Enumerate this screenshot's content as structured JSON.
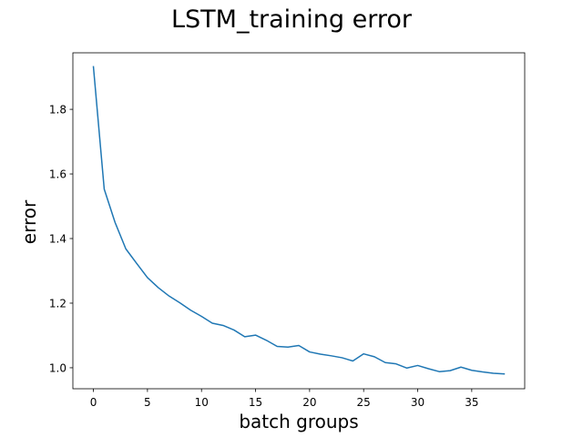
{
  "chart_data": {
    "type": "line",
    "title": "LSTM_training error",
    "xlabel": "batch groups",
    "ylabel": "error",
    "xlim": [
      -1.9,
      39.9
    ],
    "ylim": [
      0.935,
      1.975
    ],
    "xticks": [
      0,
      5,
      10,
      15,
      20,
      25,
      30,
      35
    ],
    "yticks": [
      1.0,
      1.2,
      1.4,
      1.6,
      1.8
    ],
    "xtick_labels": [
      "0",
      "5",
      "10",
      "15",
      "20",
      "25",
      "30",
      "35"
    ],
    "ytick_labels": [
      "1.0",
      "1.2",
      "1.4",
      "1.6",
      "1.8"
    ],
    "grid": false,
    "legend": "none",
    "color": "#1f77b4",
    "series": [
      {
        "x": [
          0,
          1,
          2,
          3,
          4,
          5,
          6,
          7,
          8,
          9,
          10,
          11,
          12,
          13,
          14,
          15,
          16,
          17,
          18,
          19,
          20,
          21,
          22,
          23,
          24,
          25,
          26,
          27,
          28,
          29,
          30,
          31,
          32,
          33,
          34,
          35,
          36,
          37,
          38
        ],
        "y": [
          1.932,
          1.553,
          1.45,
          1.368,
          1.323,
          1.279,
          1.248,
          1.222,
          1.201,
          1.178,
          1.159,
          1.138,
          1.131,
          1.117,
          1.096,
          1.101,
          1.085,
          1.066,
          1.064,
          1.069,
          1.049,
          1.042,
          1.037,
          1.031,
          1.021,
          1.043,
          1.034,
          1.016,
          1.012,
          0.999,
          1.007,
          0.997,
          0.988,
          0.991,
          1.002,
          0.992,
          0.987,
          0.983,
          0.981
        ]
      }
    ]
  }
}
